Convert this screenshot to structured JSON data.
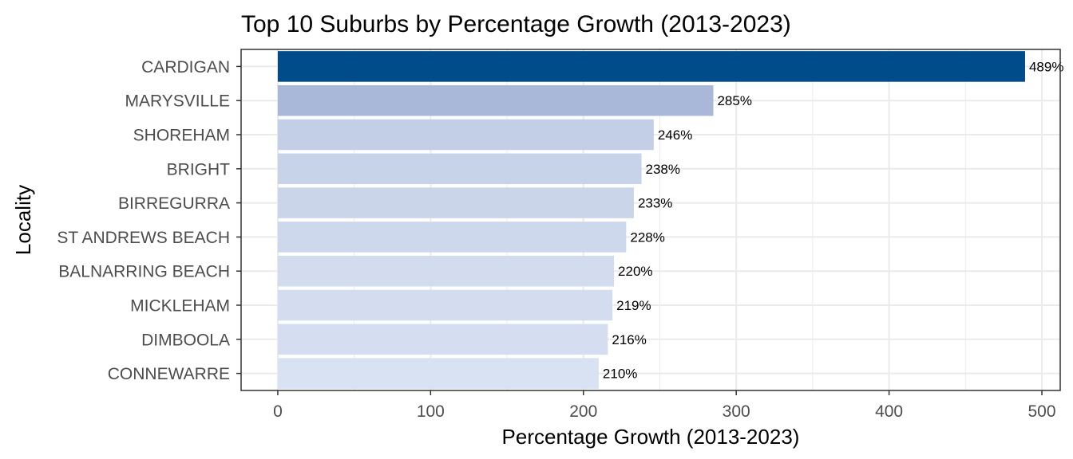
{
  "chart_data": {
    "type": "bar",
    "orientation": "horizontal",
    "title": "Top 10 Suburbs by Percentage Growth (2013-2023)",
    "xlabel": "Percentage Growth (2013-2023)",
    "ylabel": "Locality",
    "xlim": [
      -24,
      512
    ],
    "xticks": [
      0,
      100,
      200,
      300,
      400,
      500
    ],
    "grid": true,
    "categories": [
      "CARDIGAN",
      "MARYSVILLE",
      "SHOREHAM",
      "BRIGHT",
      "BIRREGURRA",
      "ST ANDREWS BEACH",
      "BALNARRING BEACH",
      "MICKLEHAM",
      "DIMBOOLA",
      "CONNEWARRE"
    ],
    "values": [
      489,
      285,
      246,
      238,
      233,
      228,
      220,
      219,
      216,
      210
    ],
    "data_labels": [
      "489%",
      "285%",
      "246%",
      "238%",
      "233%",
      "228%",
      "220%",
      "219%",
      "216%",
      "210%"
    ],
    "colors": [
      "#004c8a",
      "#a9b8d9",
      "#c3cfe7",
      "#c7d3e9",
      "#cad5ea",
      "#cdd8ec",
      "#d2dcee",
      "#d3ddef",
      "#d5def0",
      "#d9e2f2"
    ],
    "panel_border": "#333333",
    "grid_color": "#ebebeb"
  }
}
